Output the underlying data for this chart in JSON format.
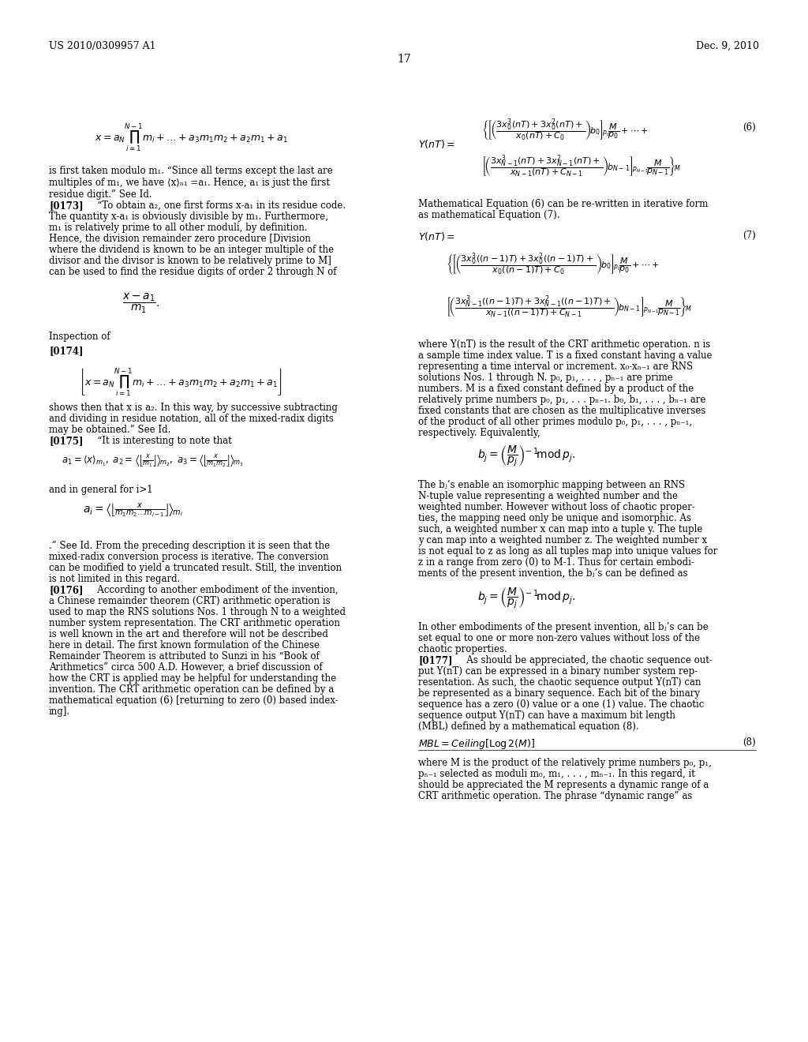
{
  "bg": "#ffffff",
  "header_left": "US 2010/0309957 A1",
  "header_right": "Dec. 9, 2010",
  "page_num": "17"
}
